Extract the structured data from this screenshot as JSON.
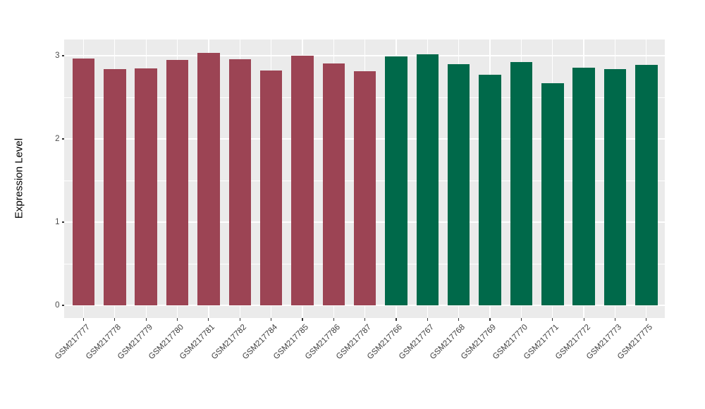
{
  "figure": {
    "background": "#FFFFFF",
    "panel_background": "#EBEBEB",
    "gridline_color": "#FFFFFF",
    "tick_color": "#333333",
    "axis_text_color": "#4D4D4D",
    "axis_title_color": "#000000"
  },
  "chart_data": {
    "type": "bar",
    "title": "",
    "xlabel": "",
    "ylabel": "Expression Level",
    "ylim": [
      0,
      3.2
    ],
    "yticks": [
      0,
      1,
      2,
      3
    ],
    "ytick_labels": [
      "0",
      "1",
      "2",
      "3"
    ],
    "y_minor_gridlines": [
      0.5,
      1.5,
      2.5
    ],
    "grid": "white major and minor horizontal lines, white vertical lines at each category, on gray panel",
    "legend": "none",
    "categories": [
      "GSM217777",
      "GSM217778",
      "GSM217779",
      "GSM217780",
      "GSM217781",
      "GSM217782",
      "GSM217784",
      "GSM217785",
      "GSM217786",
      "GSM217787",
      "GSM217766",
      "GSM217767",
      "GSM217768",
      "GSM217769",
      "GSM217770",
      "GSM217771",
      "GSM217772",
      "GSM217773",
      "GSM217775"
    ],
    "values": [
      2.97,
      2.84,
      2.85,
      2.95,
      3.03,
      2.96,
      2.82,
      3.0,
      2.91,
      2.81,
      2.99,
      3.02,
      2.9,
      2.77,
      2.92,
      2.67,
      2.86,
      2.84,
      2.89
    ],
    "bar_colors": [
      "#9C4454",
      "#9C4454",
      "#9C4454",
      "#9C4454",
      "#9C4454",
      "#9C4454",
      "#9C4454",
      "#9C4454",
      "#9C4454",
      "#9C4454",
      "#00694A",
      "#00694A",
      "#00694A",
      "#00694A",
      "#00694A",
      "#00694A",
      "#00694A",
      "#00694A",
      "#00694A"
    ],
    "color_groups": [
      {
        "color": "#9C4454",
        "first_category": "GSM217777",
        "last_category": "GSM217787",
        "count": 10
      },
      {
        "color": "#00694A",
        "first_category": "GSM217766",
        "last_category": "GSM217775",
        "count": 9
      }
    ]
  }
}
